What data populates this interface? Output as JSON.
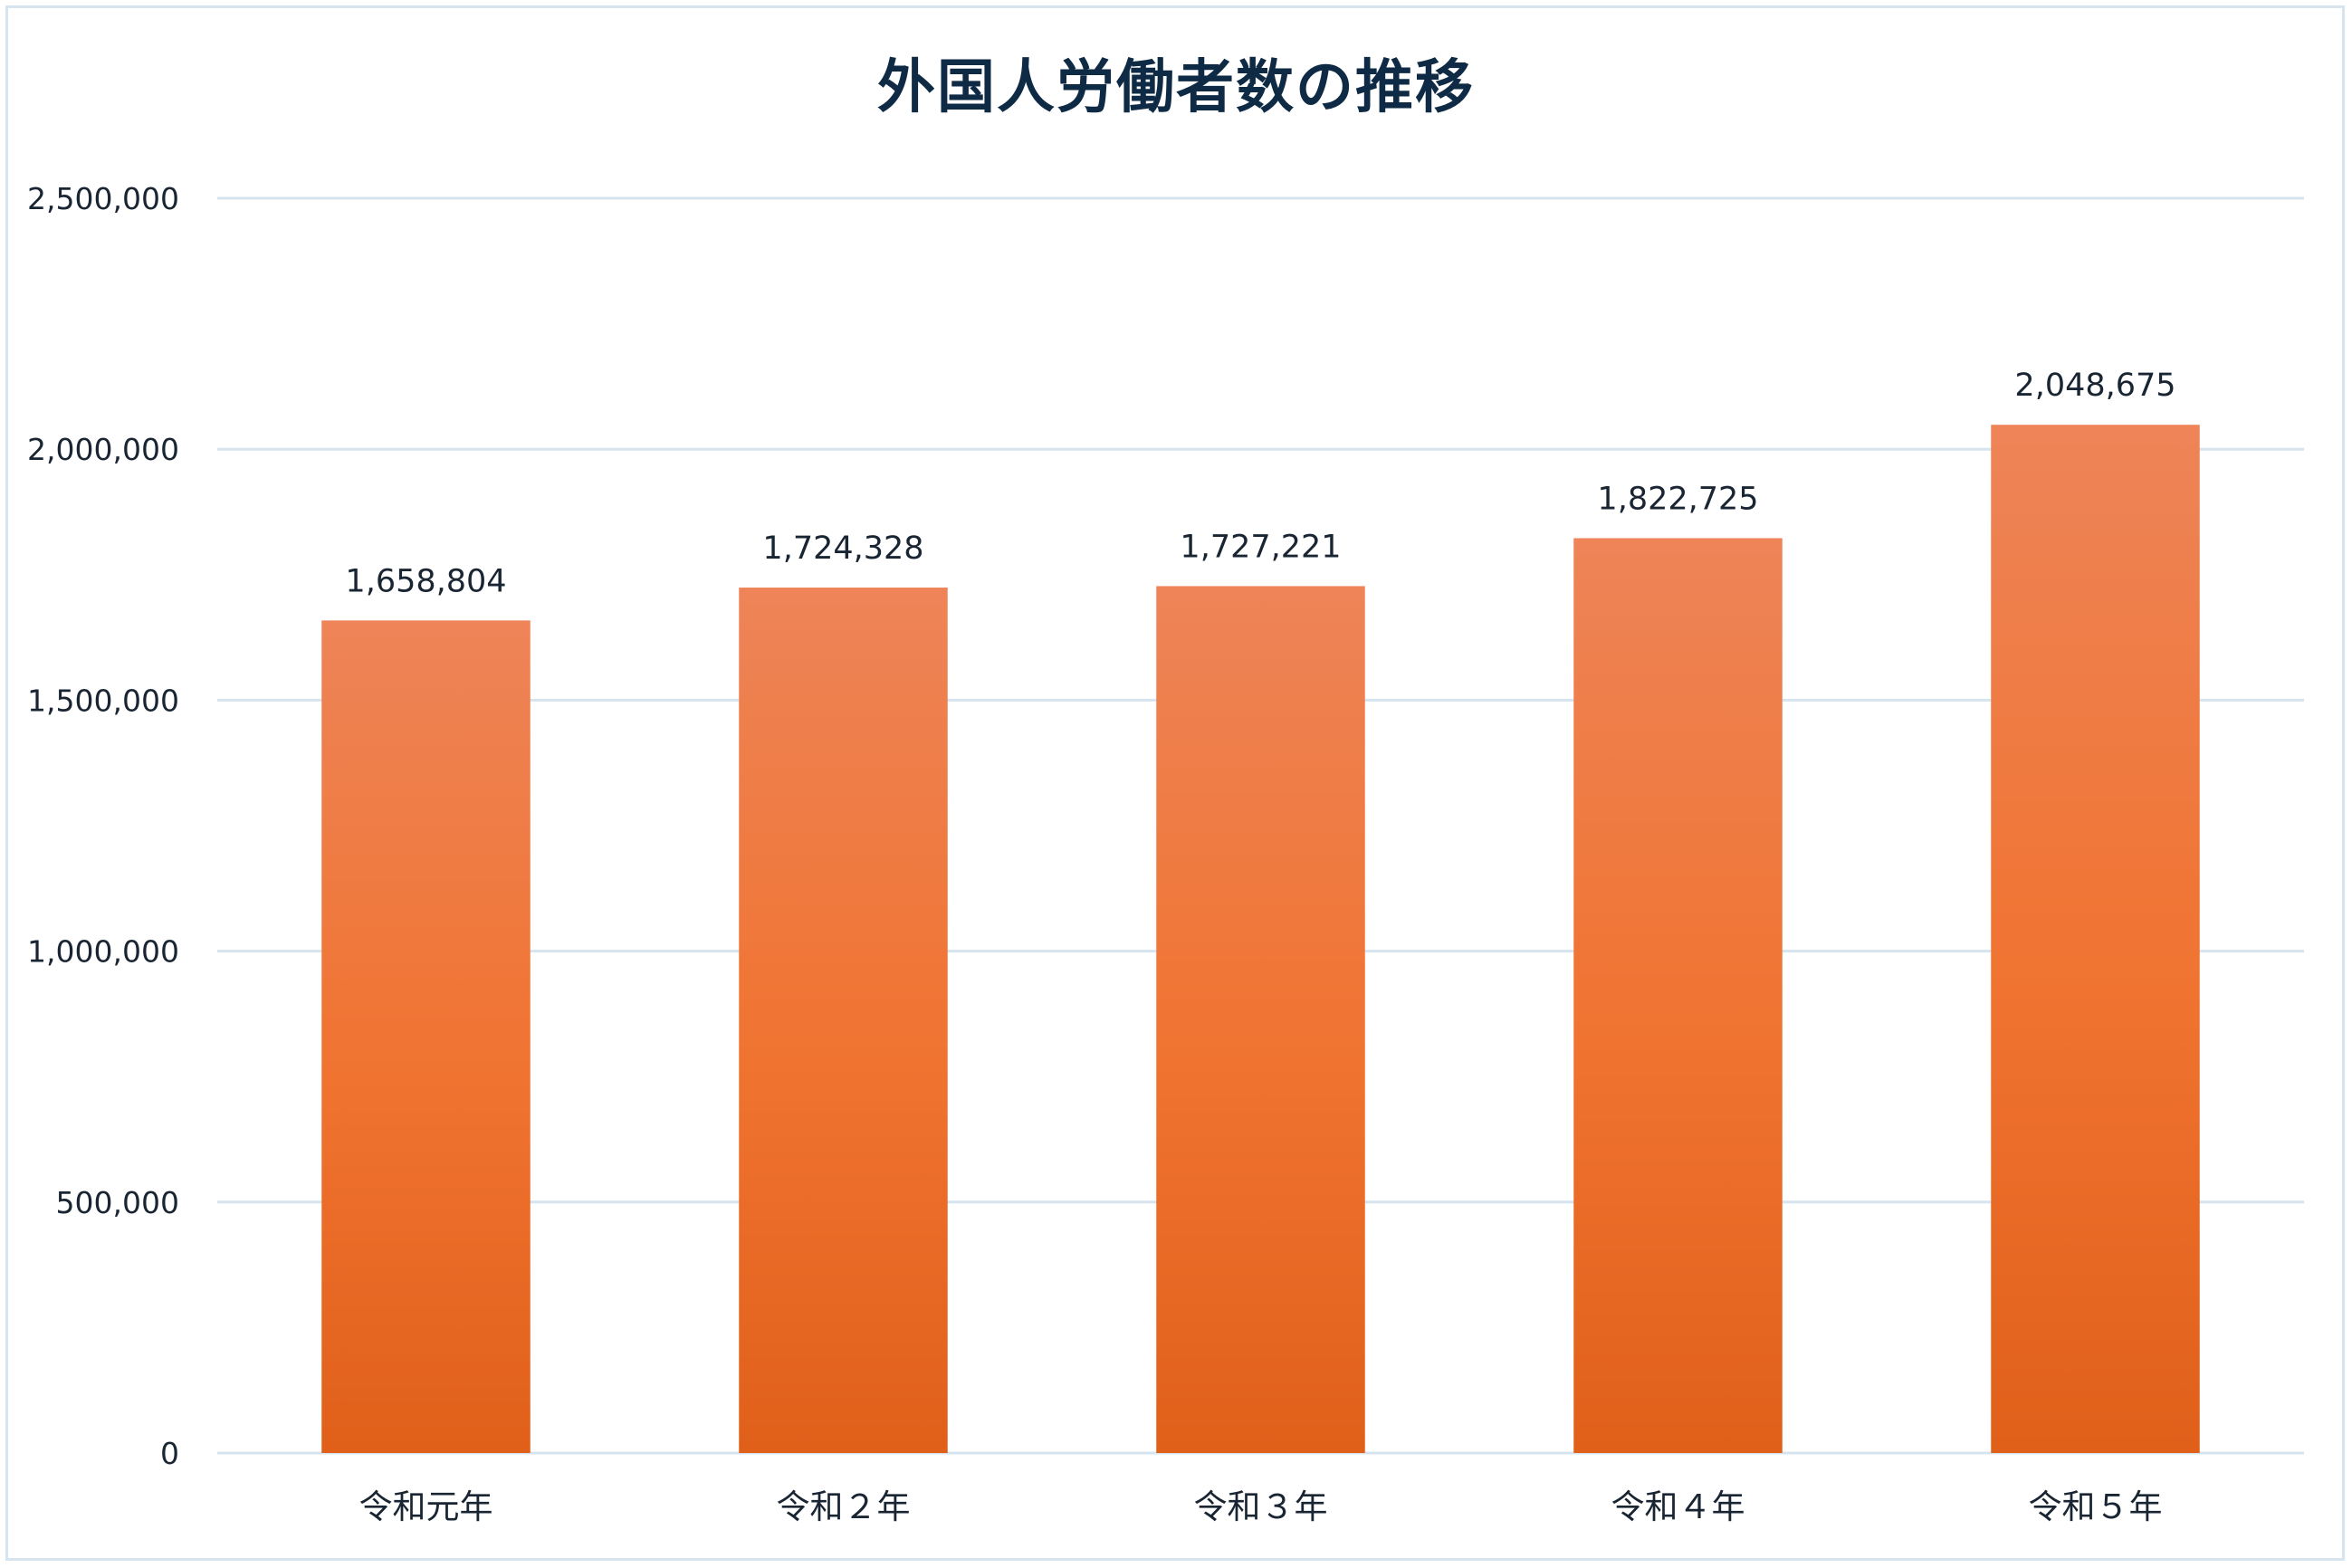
{
  "chart_data": {
    "type": "bar",
    "title": "外国人労働者数の推移",
    "categories": [
      "令和元年",
      "令和２年",
      "令和３年",
      "令和４年",
      "令和５年"
    ],
    "values": [
      1658804,
      1724328,
      1727221,
      1822725,
      2048675
    ],
    "value_labels": [
      "1,658,804",
      "1,724,328",
      "1,727,221",
      "1,822,725",
      "2,048,675"
    ],
    "ylim": [
      0,
      2500000
    ],
    "yticks": [
      0,
      500000,
      1000000,
      1500000,
      2000000,
      2500000
    ],
    "ytick_labels": [
      "0",
      "500,000",
      "1,000,000",
      "1,500,000",
      "2,000,000",
      "2,500,000"
    ],
    "xlabel": "",
    "ylabel": "",
    "grid": true,
    "legend": "none",
    "colors": {
      "bar_top": "#ee8458",
      "bar_mid": "#f07330",
      "bar_bottom": "#e0601a",
      "grid": "#d6e4f0",
      "title": "#0f2a45",
      "text": "#1a2533"
    }
  }
}
